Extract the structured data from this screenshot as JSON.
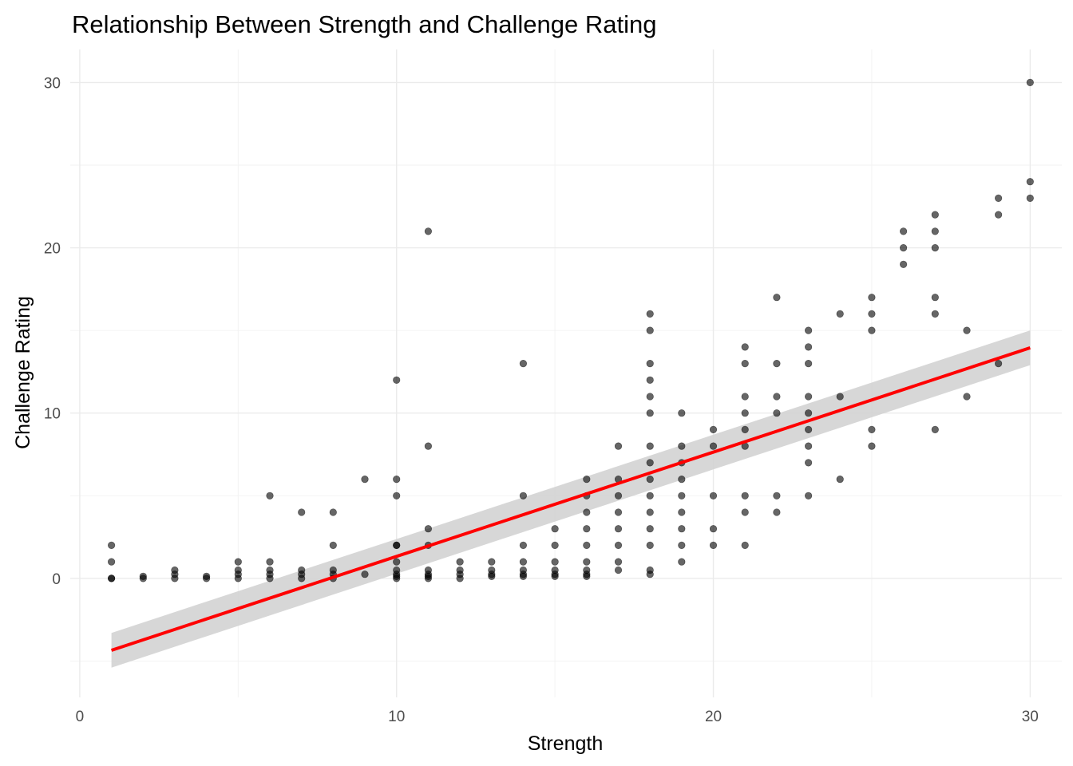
{
  "chart_data": {
    "type": "scatter",
    "title": "Relationship Between Strength and Challenge Rating",
    "xlabel": "Strength",
    "ylabel": "Challenge Rating",
    "xlim": [
      -0.3,
      31.0
    ],
    "ylim": [
      -7.2,
      32.0
    ],
    "x_ticks": [
      0,
      10,
      20,
      30
    ],
    "y_ticks": [
      0,
      10,
      20,
      30
    ],
    "x_minor_ticks": [
      5,
      15,
      25
    ],
    "y_minor_ticks": [
      -5,
      5,
      15,
      25
    ],
    "grid": true,
    "point_color": "#000000",
    "point_opacity": 0.6,
    "points": [
      [
        1,
        2
      ],
      [
        1,
        1
      ],
      [
        1,
        0
      ],
      [
        1,
        0
      ],
      [
        2,
        0.125
      ],
      [
        2,
        0
      ],
      [
        3,
        0.5
      ],
      [
        3,
        0.25
      ],
      [
        3,
        0
      ],
      [
        4,
        0.125
      ],
      [
        4,
        0
      ],
      [
        5,
        1
      ],
      [
        5,
        0.5
      ],
      [
        5,
        0.25
      ],
      [
        5,
        0
      ],
      [
        6,
        5
      ],
      [
        6,
        1
      ],
      [
        6,
        0.5
      ],
      [
        6,
        0.25
      ],
      [
        6,
        0
      ],
      [
        7,
        4
      ],
      [
        7,
        0.5
      ],
      [
        7,
        0.25
      ],
      [
        7,
        0
      ],
      [
        8,
        4
      ],
      [
        8,
        2
      ],
      [
        8,
        0.5
      ],
      [
        8,
        0.25
      ],
      [
        8,
        0
      ],
      [
        9,
        6
      ],
      [
        9,
        0.25
      ],
      [
        10,
        12
      ],
      [
        10,
        6
      ],
      [
        10,
        5
      ],
      [
        10,
        2
      ],
      [
        10,
        2
      ],
      [
        10,
        1
      ],
      [
        10,
        0.5
      ],
      [
        10,
        0.25
      ],
      [
        10,
        0.125
      ],
      [
        10,
        0
      ],
      [
        11,
        21
      ],
      [
        11,
        8
      ],
      [
        11,
        3
      ],
      [
        11,
        2
      ],
      [
        11,
        0.5
      ],
      [
        11,
        0.25
      ],
      [
        11,
        0.125
      ],
      [
        11,
        0
      ],
      [
        12,
        1
      ],
      [
        12,
        0.5
      ],
      [
        12,
        0.25
      ],
      [
        12,
        0
      ],
      [
        13,
        1
      ],
      [
        13,
        0.5
      ],
      [
        13,
        0.25
      ],
      [
        13,
        0.125
      ],
      [
        14,
        13
      ],
      [
        14,
        5
      ],
      [
        14,
        2
      ],
      [
        14,
        1
      ],
      [
        14,
        0.5
      ],
      [
        14,
        0.25
      ],
      [
        14,
        0.125
      ],
      [
        15,
        3
      ],
      [
        15,
        2
      ],
      [
        15,
        1
      ],
      [
        15,
        0.5
      ],
      [
        15,
        0.25
      ],
      [
        15,
        0.125
      ],
      [
        16,
        6
      ],
      [
        16,
        5
      ],
      [
        16,
        4
      ],
      [
        16,
        3
      ],
      [
        16,
        2
      ],
      [
        16,
        1
      ],
      [
        16,
        0.5
      ],
      [
        16,
        0.25
      ],
      [
        16,
        0.125
      ],
      [
        17,
        8
      ],
      [
        17,
        6
      ],
      [
        17,
        5
      ],
      [
        17,
        4
      ],
      [
        17,
        3
      ],
      [
        17,
        2
      ],
      [
        17,
        1
      ],
      [
        17,
        0.5
      ],
      [
        18,
        16
      ],
      [
        18,
        15
      ],
      [
        18,
        13
      ],
      [
        18,
        12
      ],
      [
        18,
        11
      ],
      [
        18,
        10
      ],
      [
        18,
        8
      ],
      [
        18,
        7
      ],
      [
        18,
        6
      ],
      [
        18,
        5
      ],
      [
        18,
        4
      ],
      [
        18,
        3
      ],
      [
        18,
        2
      ],
      [
        18,
        0.5
      ],
      [
        18,
        0.25
      ],
      [
        19,
        10
      ],
      [
        19,
        8
      ],
      [
        19,
        7
      ],
      [
        19,
        6
      ],
      [
        19,
        5
      ],
      [
        19,
        4
      ],
      [
        19,
        3
      ],
      [
        19,
        2
      ],
      [
        19,
        1
      ],
      [
        20,
        9
      ],
      [
        20,
        8
      ],
      [
        20,
        5
      ],
      [
        20,
        3
      ],
      [
        20,
        2
      ],
      [
        21,
        14
      ],
      [
        21,
        13
      ],
      [
        21,
        11
      ],
      [
        21,
        10
      ],
      [
        21,
        9
      ],
      [
        21,
        8
      ],
      [
        21,
        5
      ],
      [
        21,
        4
      ],
      [
        21,
        2
      ],
      [
        22,
        17
      ],
      [
        22,
        13
      ],
      [
        22,
        11
      ],
      [
        22,
        10
      ],
      [
        22,
        5
      ],
      [
        22,
        4
      ],
      [
        23,
        15
      ],
      [
        23,
        14
      ],
      [
        23,
        13
      ],
      [
        23,
        11
      ],
      [
        23,
        10
      ],
      [
        23,
        9
      ],
      [
        23,
        8
      ],
      [
        23,
        7
      ],
      [
        23,
        5
      ],
      [
        24,
        16
      ],
      [
        24,
        11
      ],
      [
        24,
        6
      ],
      [
        25,
        17
      ],
      [
        25,
        16
      ],
      [
        25,
        15
      ],
      [
        25,
        9
      ],
      [
        25,
        8
      ],
      [
        26,
        21
      ],
      [
        26,
        20
      ],
      [
        26,
        19
      ],
      [
        27,
        22
      ],
      [
        27,
        21
      ],
      [
        27,
        20
      ],
      [
        27,
        17
      ],
      [
        27,
        16
      ],
      [
        27,
        9
      ],
      [
        28,
        15
      ],
      [
        28,
        11
      ],
      [
        29,
        23
      ],
      [
        29,
        22
      ],
      [
        29,
        13
      ],
      [
        30,
        30
      ],
      [
        30,
        24
      ],
      [
        30,
        23
      ]
    ],
    "regression_line": {
      "color": "#ff0000",
      "x": [
        1,
        30
      ],
      "y": [
        -4.35,
        13.95
      ],
      "confidence_band": {
        "color": "#d3d3d3",
        "lower": [
          -5.4,
          12.9
        ],
        "upper": [
          -3.3,
          15.0
        ]
      }
    }
  }
}
